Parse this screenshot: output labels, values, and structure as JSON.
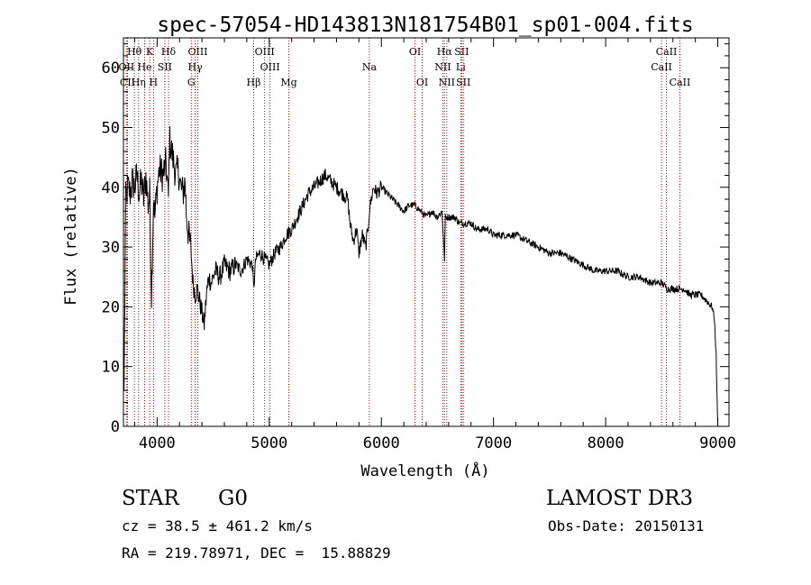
{
  "chart_data": {
    "type": "line",
    "title": "spec-57054-HD143813N181754B01_sp01-004.fits",
    "xlabel": "Wavelength (Å)",
    "ylabel": "Flux (relative)",
    "xlim": [
      3700,
      9100
    ],
    "ylim": [
      0,
      65
    ],
    "xticks": [
      4000,
      5000,
      6000,
      7000,
      8000,
      9000
    ],
    "yticks": [
      0,
      10,
      20,
      30,
      40,
      50,
      60
    ],
    "grid": false,
    "series": [
      {
        "name": "flux",
        "x": [
          3700,
          3705,
          3720,
          3740,
          3760,
          3780,
          3800,
          3820,
          3840,
          3860,
          3880,
          3900,
          3920,
          3935,
          3950,
          3968,
          3980,
          4000,
          4020,
          4050,
          4080,
          4101,
          4110,
          4130,
          4150,
          4170,
          4190,
          4210,
          4230,
          4250,
          4260,
          4280,
          4300,
          4320,
          4340,
          4360,
          4380,
          4400,
          4420,
          4440,
          4460,
          4480,
          4520,
          4560,
          4600,
          4650,
          4700,
          4750,
          4800,
          4850,
          4861,
          4880,
          4920,
          4960,
          5000,
          5050,
          5100,
          5150,
          5200,
          5250,
          5300,
          5350,
          5400,
          5450,
          5500,
          5550,
          5600,
          5650,
          5700,
          5720,
          5750,
          5780,
          5800,
          5830,
          5860,
          5880,
          5893,
          5910,
          5930,
          5960,
          6000,
          6050,
          6100,
          6150,
          6200,
          6250,
          6300,
          6350,
          6400,
          6450,
          6500,
          6540,
          6563,
          6570,
          6600,
          6650,
          6700,
          6750,
          6800,
          6850,
          6900,
          6950,
          7000,
          7100,
          7200,
          7300,
          7400,
          7500,
          7600,
          7700,
          7800,
          7900,
          8000,
          8100,
          8200,
          8300,
          8400,
          8500,
          8550,
          8600,
          8650,
          8700,
          8750,
          8800,
          8850,
          8900,
          8950,
          8970,
          8985,
          8995,
          9000
        ],
        "values": [
          14,
          6,
          38,
          40,
          39,
          41,
          40,
          42,
          39,
          41,
          38,
          42,
          37,
          39,
          22,
          38,
          35,
          40,
          43,
          42,
          44,
          38,
          48,
          46,
          44,
          42,
          43,
          40,
          39,
          41,
          36,
          32,
          30,
          24,
          22,
          23,
          21,
          19,
          17,
          22,
          25,
          24,
          26,
          25,
          27,
          26,
          27,
          26,
          28,
          27,
          23,
          28,
          29,
          28,
          27,
          29,
          30,
          32,
          33,
          35,
          37,
          39,
          40,
          41,
          42,
          41,
          40,
          39,
          38,
          34,
          31,
          33,
          29,
          32,
          30,
          33,
          36,
          38,
          40,
          39,
          40,
          39,
          38,
          37,
          36,
          37,
          37,
          36,
          35,
          36,
          35,
          36,
          28,
          35,
          35,
          35,
          34,
          34,
          34,
          33,
          33,
          33,
          32,
          32,
          32,
          31,
          30,
          29,
          29,
          28,
          27,
          26,
          26,
          26,
          25,
          25,
          24,
          24,
          23,
          23,
          23,
          23,
          22,
          22,
          22,
          21,
          20,
          18,
          12,
          4,
          0
        ]
      }
    ],
    "line_markers": [
      {
        "label": "Hθ",
        "wavelength": 3798,
        "row": 1
      },
      {
        "label": "OII",
        "wavelength": 3727,
        "row": 2
      },
      {
        "label": "CII",
        "wavelength": 3736,
        "row": 3
      },
      {
        "label": "K",
        "wavelength": 3934,
        "row": 1
      },
      {
        "label": "He",
        "wavelength": 3889,
        "row": 2
      },
      {
        "label": "Hη",
        "wavelength": 3835,
        "row": 3
      },
      {
        "label": "SII",
        "wavelength": 4069,
        "row": 2
      },
      {
        "label": "H",
        "wavelength": 3968,
        "row": 3
      },
      {
        "label": "Hδ",
        "wavelength": 4102,
        "row": 1
      },
      {
        "label": "OIII",
        "wavelength": 4363,
        "row": 1
      },
      {
        "label": "Hγ",
        "wavelength": 4340,
        "row": 2
      },
      {
        "label": "G",
        "wavelength": 4305,
        "row": 3
      },
      {
        "label": "OIII",
        "wavelength": 4959,
        "row": 1
      },
      {
        "label": "OIII",
        "wavelength": 5007,
        "row": 2
      },
      {
        "label": "Hβ",
        "wavelength": 4861,
        "row": 3
      },
      {
        "label": "Mg",
        "wavelength": 5175,
        "row": 3
      },
      {
        "label": "Na",
        "wavelength": 5893,
        "row": 2
      },
      {
        "label": "OI",
        "wavelength": 6300,
        "row": 1
      },
      {
        "label": "OI",
        "wavelength": 6364,
        "row": 3
      },
      {
        "label": "Hα",
        "wavelength": 6563,
        "row": 1
      },
      {
        "label": "NII",
        "wavelength": 6548,
        "row": 2
      },
      {
        "label": "NII",
        "wavelength": 6583,
        "row": 3
      },
      {
        "label": "SII",
        "wavelength": 6716,
        "row": 1
      },
      {
        "label": "Li",
        "wavelength": 6708,
        "row": 2
      },
      {
        "label": "SII",
        "wavelength": 6731,
        "row": 3
      },
      {
        "label": "CaII",
        "wavelength": 8542,
        "row": 1
      },
      {
        "label": "CaII",
        "wavelength": 8498,
        "row": 2
      },
      {
        "label": "CaII",
        "wavelength": 8662,
        "row": 3
      }
    ]
  },
  "info": {
    "object_class": "STAR",
    "subclass": "G0",
    "survey": "LAMOST DR3",
    "redshift": "cz = 38.5 ± 461.2 km/s",
    "obs_date": "Obs-Date: 20150131",
    "coords": "RA = 219.78971, DEC =  15.88829"
  }
}
